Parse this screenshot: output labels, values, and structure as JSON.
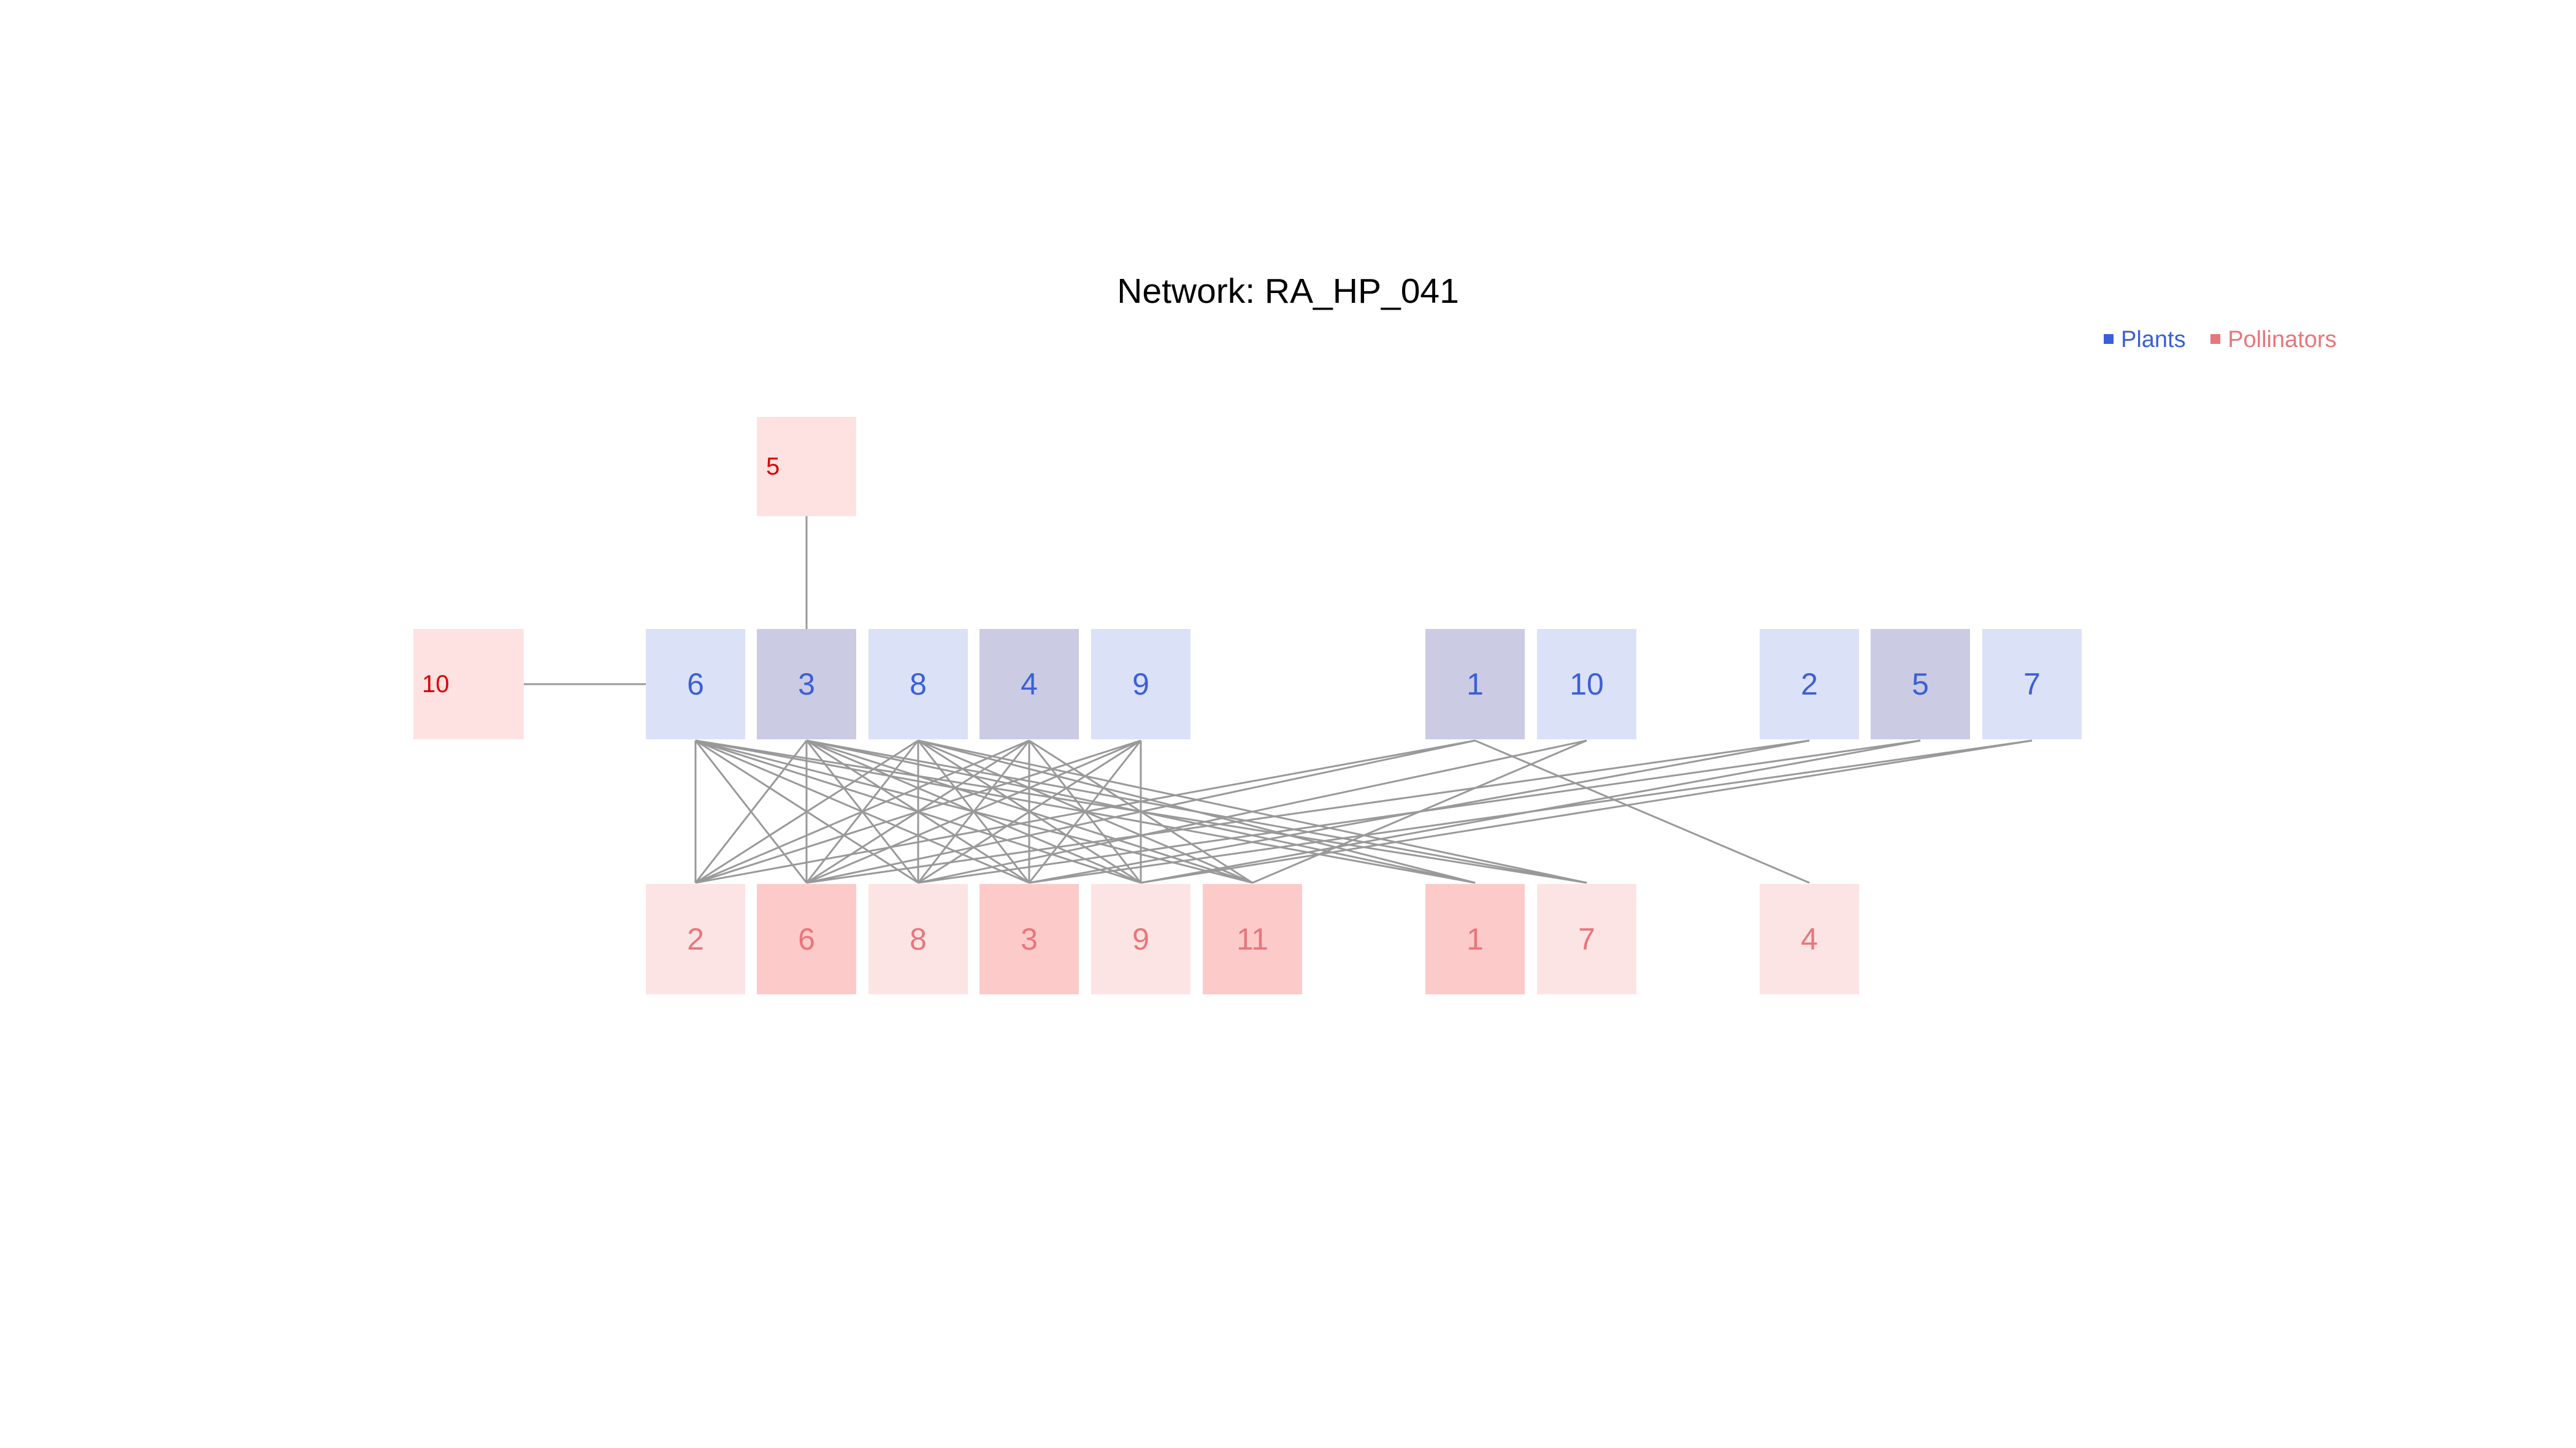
{
  "title": "Network: RA_HP_041",
  "legend": {
    "plants_label": "Plants",
    "pollinators_label": "Pollinators",
    "plants_color": "#3b5fd6",
    "pollinators_color": "#e8767a"
  },
  "colors": {
    "plant_text": "#3b5fd6",
    "plant_fill_light": "#dbe1f7",
    "plant_fill_dark": "#cbcbe4",
    "pollinator_text": "#e8767a",
    "pollinator_fill_light": "#fde4e4",
    "pollinator_fill_dark": "#fdcaca",
    "isolated_text": "#dd0000",
    "isolated_fill": "#fee2e2",
    "edge": "#999999"
  },
  "plants": [
    {
      "id": "6",
      "shade": "light"
    },
    {
      "id": "3",
      "shade": "dark"
    },
    {
      "id": "8",
      "shade": "light"
    },
    {
      "id": "4",
      "shade": "dark"
    },
    {
      "id": "9",
      "shade": "light"
    },
    {
      "id": "1",
      "shade": "dark"
    },
    {
      "id": "10",
      "shade": "light"
    },
    {
      "id": "2",
      "shade": "light"
    },
    {
      "id": "5",
      "shade": "dark"
    },
    {
      "id": "7",
      "shade": "light"
    }
  ],
  "pollinators": [
    {
      "id": "2",
      "shade": "light"
    },
    {
      "id": "6",
      "shade": "dark"
    },
    {
      "id": "8",
      "shade": "light"
    },
    {
      "id": "3",
      "shade": "dark"
    },
    {
      "id": "9",
      "shade": "light"
    },
    {
      "id": "11",
      "shade": "dark"
    },
    {
      "id": "1",
      "shade": "dark"
    },
    {
      "id": "7",
      "shade": "light"
    },
    {
      "id": "4",
      "shade": "light"
    }
  ],
  "isolated_pollinators": [
    {
      "id": "5",
      "linked_plant": "3"
    },
    {
      "id": "10",
      "linked_plant": "6"
    }
  ],
  "links": [
    [
      "6",
      "2"
    ],
    [
      "6",
      "6"
    ],
    [
      "6",
      "8"
    ],
    [
      "6",
      "3"
    ],
    [
      "6",
      "9"
    ],
    [
      "6",
      "11"
    ],
    [
      "6",
      "1"
    ],
    [
      "6",
      "7"
    ],
    [
      "3",
      "2"
    ],
    [
      "3",
      "6"
    ],
    [
      "3",
      "8"
    ],
    [
      "3",
      "3"
    ],
    [
      "3",
      "9"
    ],
    [
      "3",
      "11"
    ],
    [
      "3",
      "1"
    ],
    [
      "3",
      "7"
    ],
    [
      "8",
      "2"
    ],
    [
      "8",
      "6"
    ],
    [
      "8",
      "8"
    ],
    [
      "8",
      "3"
    ],
    [
      "8",
      "9"
    ],
    [
      "8",
      "11"
    ],
    [
      "8",
      "1"
    ],
    [
      "8",
      "7"
    ],
    [
      "4",
      "2"
    ],
    [
      "4",
      "6"
    ],
    [
      "4",
      "8"
    ],
    [
      "4",
      "3"
    ],
    [
      "4",
      "9"
    ],
    [
      "4",
      "11"
    ],
    [
      "9",
      "2"
    ],
    [
      "9",
      "6"
    ],
    [
      "9",
      "8"
    ],
    [
      "9",
      "3"
    ],
    [
      "9",
      "9"
    ],
    [
      "1",
      "2"
    ],
    [
      "1",
      "6"
    ],
    [
      "1",
      "4"
    ],
    [
      "10",
      "8"
    ],
    [
      "10",
      "11"
    ],
    [
      "2",
      "6"
    ],
    [
      "2",
      "3"
    ],
    [
      "5",
      "8"
    ],
    [
      "5",
      "9"
    ],
    [
      "7",
      "3"
    ],
    [
      "7",
      "9"
    ]
  ]
}
